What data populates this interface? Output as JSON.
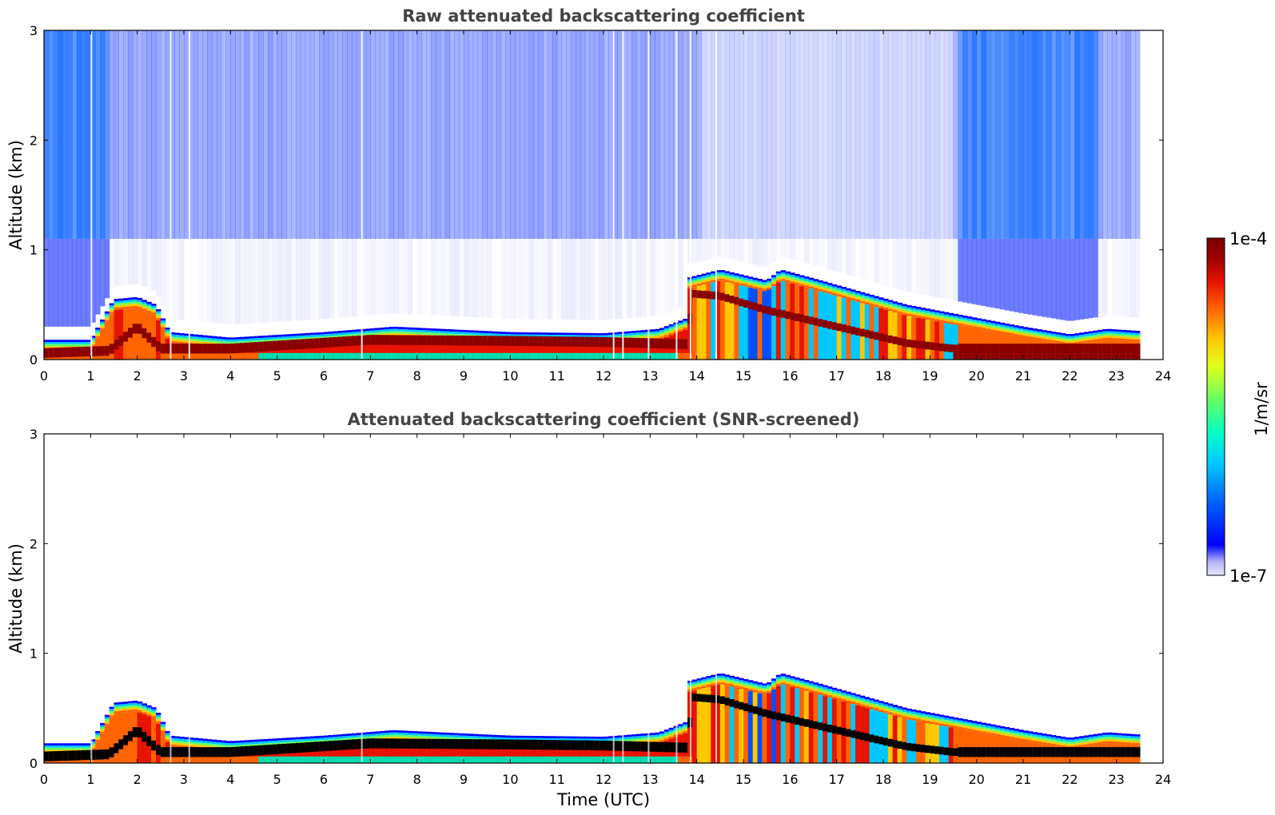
{
  "chart_data": [
    {
      "type": "heatmap",
      "title": "Raw attenuated backscattering coefficient",
      "xlabel": "",
      "ylabel": "Altitude (km)",
      "xlim": [
        0,
        24
      ],
      "ylim": [
        0,
        3
      ],
      "xticks": [
        "0",
        "1",
        "2",
        "3",
        "4",
        "5",
        "6",
        "7",
        "8",
        "9",
        "10",
        "11",
        "12",
        "13",
        "14",
        "15",
        "16",
        "17",
        "18",
        "19",
        "20",
        "21",
        "22",
        "23",
        "24"
      ],
      "yticks": [
        "0",
        "1",
        "2",
        "3"
      ],
      "data_end_time": 23.5,
      "noise_background": true,
      "layer_top_km": [
        [
          0,
          0.18
        ],
        [
          1,
          0.18
        ],
        [
          1.5,
          0.55
        ],
        [
          2.0,
          0.57
        ],
        [
          2.4,
          0.5
        ],
        [
          2.7,
          0.25
        ],
        [
          4,
          0.2
        ],
        [
          6,
          0.25
        ],
        [
          7.5,
          0.3
        ],
        [
          10,
          0.25
        ],
        [
          12,
          0.24
        ],
        [
          13.2,
          0.28
        ],
        [
          13.8,
          0.38
        ],
        [
          13.85,
          0.75
        ],
        [
          14.5,
          0.82
        ],
        [
          15.5,
          0.72
        ],
        [
          15.8,
          0.82
        ],
        [
          16.5,
          0.74
        ],
        [
          17.5,
          0.62
        ],
        [
          18.5,
          0.5
        ],
        [
          19.5,
          0.42
        ],
        [
          21,
          0.3
        ],
        [
          22,
          0.23
        ],
        [
          22.8,
          0.28
        ],
        [
          23.5,
          0.26
        ]
      ],
      "peak_layer_km": [
        [
          0,
          0.06
        ],
        [
          1.4,
          0.08
        ],
        [
          2,
          0.3
        ],
        [
          2.5,
          0.1
        ],
        [
          4,
          0.1
        ],
        [
          7,
          0.18
        ],
        [
          10,
          0.17
        ],
        [
          12,
          0.16
        ],
        [
          13.8,
          0.14
        ],
        [
          13.9,
          0.6
        ],
        [
          14.5,
          0.58
        ],
        [
          15.5,
          0.45
        ],
        [
          16.5,
          0.35
        ],
        [
          17.5,
          0.25
        ],
        [
          18.5,
          0.15
        ],
        [
          19.5,
          0.1
        ],
        [
          23.5,
          0.1
        ]
      ]
    },
    {
      "type": "heatmap",
      "title": "Attenuated backscattering coefficient (SNR-screened)",
      "xlabel": "Time (UTC)",
      "ylabel": "Altitude (km)",
      "xlim": [
        0,
        24
      ],
      "ylim": [
        0,
        3
      ],
      "xticks": [
        "0",
        "1",
        "2",
        "3",
        "4",
        "5",
        "6",
        "7",
        "8",
        "9",
        "10",
        "11",
        "12",
        "13",
        "14",
        "15",
        "16",
        "17",
        "18",
        "19",
        "20",
        "21",
        "22",
        "23",
        "24"
      ],
      "yticks": [
        "0",
        "1",
        "2",
        "3"
      ],
      "data_end_time": 23.5,
      "noise_background": false,
      "layer_top_km": [
        [
          0,
          0.18
        ],
        [
          1,
          0.18
        ],
        [
          1.5,
          0.55
        ],
        [
          2.0,
          0.57
        ],
        [
          2.4,
          0.5
        ],
        [
          2.7,
          0.25
        ],
        [
          4,
          0.2
        ],
        [
          6,
          0.25
        ],
        [
          7.5,
          0.3
        ],
        [
          10,
          0.25
        ],
        [
          12,
          0.24
        ],
        [
          13.2,
          0.28
        ],
        [
          13.8,
          0.38
        ],
        [
          13.85,
          0.75
        ],
        [
          14.5,
          0.82
        ],
        [
          15.5,
          0.72
        ],
        [
          15.8,
          0.82
        ],
        [
          16.5,
          0.74
        ],
        [
          17.5,
          0.62
        ],
        [
          18.5,
          0.5
        ],
        [
          19.5,
          0.42
        ],
        [
          21,
          0.3
        ],
        [
          22,
          0.23
        ],
        [
          22.8,
          0.28
        ],
        [
          23.5,
          0.26
        ]
      ],
      "peak_layer_km": [
        [
          0,
          0.06
        ],
        [
          1.4,
          0.08
        ],
        [
          2,
          0.3
        ],
        [
          2.5,
          0.1
        ],
        [
          4,
          0.1
        ],
        [
          7,
          0.18
        ],
        [
          10,
          0.17
        ],
        [
          12,
          0.16
        ],
        [
          13.8,
          0.14
        ],
        [
          13.9,
          0.6
        ],
        [
          14.5,
          0.58
        ],
        [
          15.5,
          0.45
        ],
        [
          16.5,
          0.35
        ],
        [
          17.5,
          0.25
        ],
        [
          18.5,
          0.15
        ],
        [
          19.5,
          0.1
        ],
        [
          23.5,
          0.1
        ]
      ]
    }
  ],
  "colorbar": {
    "label": "1/m/sr",
    "max_label": "1e-4",
    "min_label": "1e-7",
    "colormap": [
      "#e6e6fa",
      "#b4b4f5",
      "#0000ff",
      "#0064ff",
      "#00c8ff",
      "#00ffc8",
      "#64ff64",
      "#e1ff19",
      "#ffc800",
      "#ff6400",
      "#e61400",
      "#a00000",
      "#780000"
    ]
  }
}
